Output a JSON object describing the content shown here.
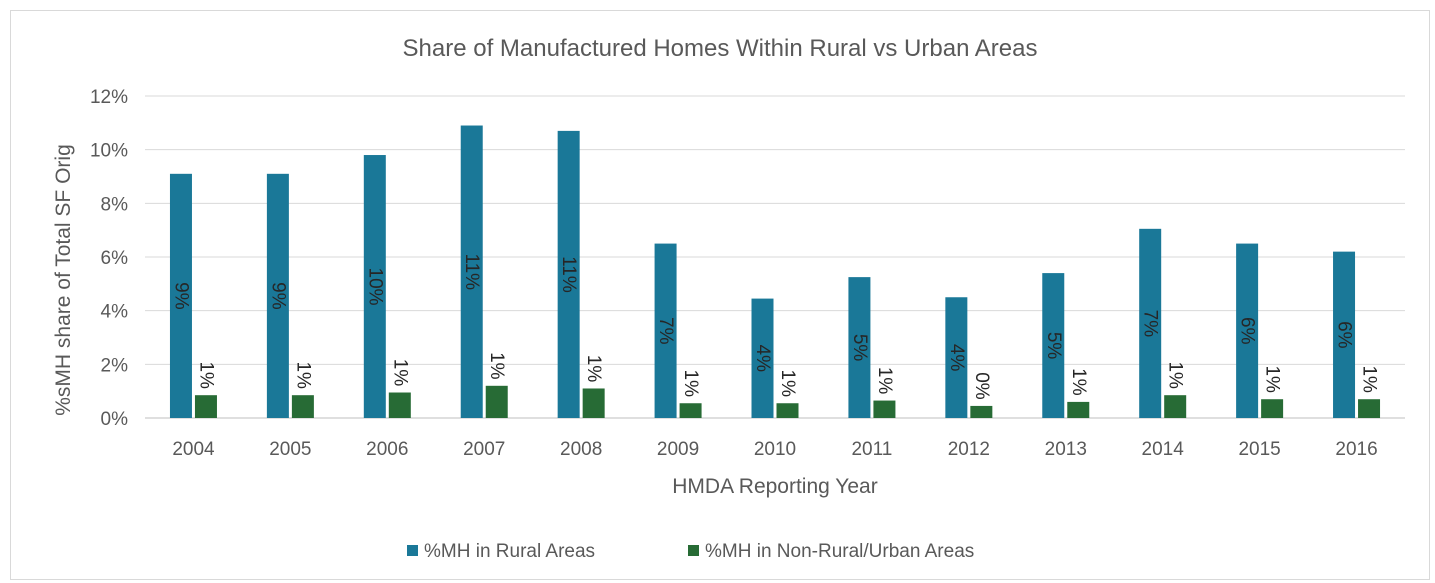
{
  "chart_data": {
    "type": "bar",
    "title": "Share of Manufactured Homes Within Rural vs Urban Areas",
    "xlabel": "HMDA Reporting Year",
    "ylabel": "%sMH share of Total SF Orig",
    "ylim": [
      0,
      12
    ],
    "yticks": [
      "0%",
      "2%",
      "4%",
      "6%",
      "8%",
      "10%",
      "12%"
    ],
    "grid": true,
    "legend_position": "bottom",
    "categories": [
      "2004",
      "2005",
      "2006",
      "2007",
      "2008",
      "2009",
      "2010",
      "2011",
      "2012",
      "2013",
      "2014",
      "2015",
      "2016"
    ],
    "series": [
      {
        "name": "%MH in Rural Areas",
        "color": "#1a7898",
        "values": [
          9.1,
          9.1,
          9.8,
          10.9,
          10.7,
          6.5,
          4.45,
          5.25,
          4.5,
          5.4,
          7.05,
          6.5,
          6.2
        ],
        "labels": [
          "9%",
          "9%",
          "10%",
          "11%",
          "11%",
          "7%",
          "4%",
          "5%",
          "4%",
          "5%",
          "7%",
          "6%",
          "6%"
        ]
      },
      {
        "name": "%MH in Non-Rural/Urban Areas",
        "color": "#276b35",
        "values": [
          0.85,
          0.85,
          0.95,
          1.2,
          1.1,
          0.55,
          0.55,
          0.65,
          0.45,
          0.6,
          0.85,
          0.7,
          0.7
        ],
        "labels": [
          "1%",
          "1%",
          "1%",
          "1%",
          "1%",
          "1%",
          "1%",
          "1%",
          "0%",
          "1%",
          "1%",
          "1%",
          "1%"
        ]
      }
    ]
  }
}
